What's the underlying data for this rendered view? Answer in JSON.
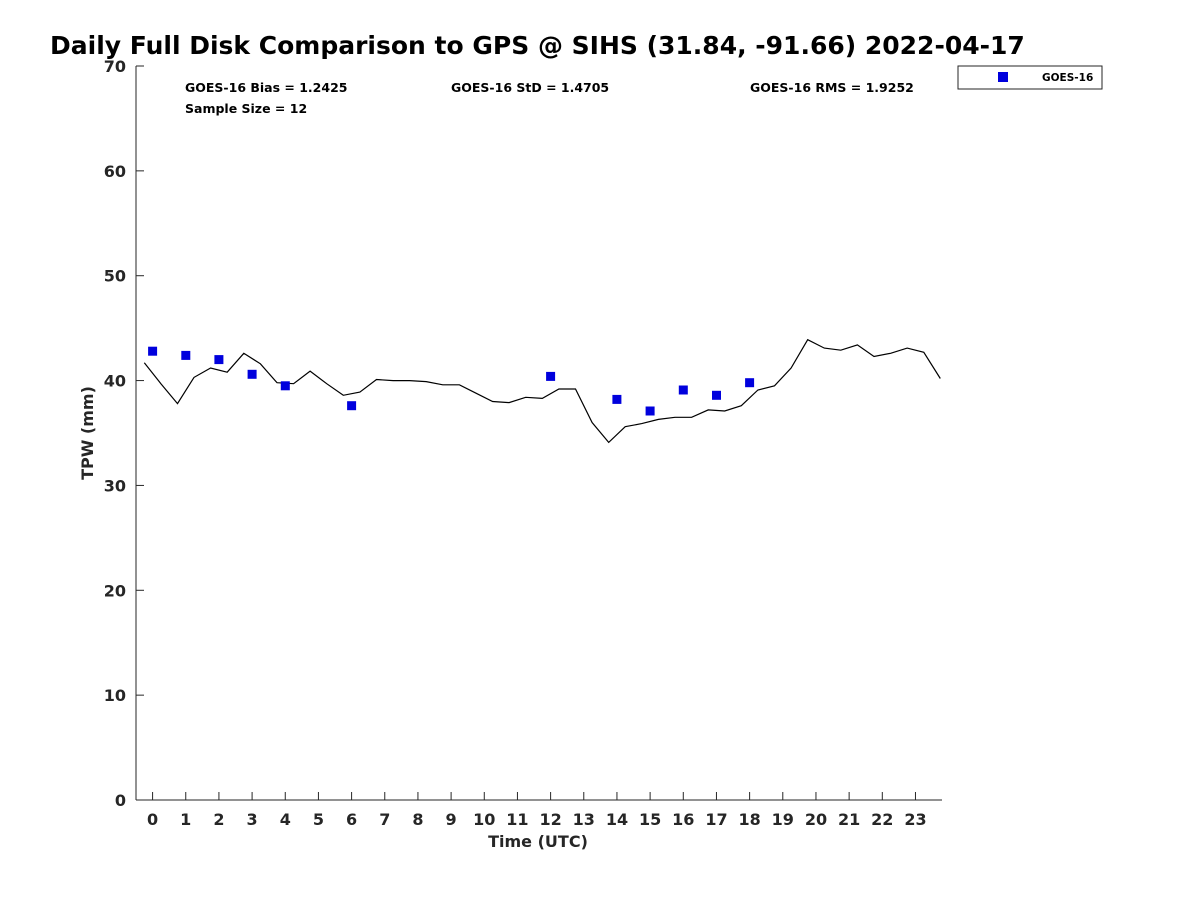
{
  "chart_data": {
    "type": "scatter",
    "title": "Daily Full Disk Comparison to GPS @ SIHS (31.84, -91.66) 2022-04-17",
    "xlabel": "Time (UTC)",
    "ylabel": "TPW (mm)",
    "xlim": [
      -0.5,
      23.8
    ],
    "ylim": [
      0,
      70
    ],
    "x_ticks": [
      "0",
      "1",
      "2",
      "3",
      "4",
      "5",
      "6",
      "7",
      "8",
      "9",
      "10",
      "11",
      "12",
      "13",
      "14",
      "15",
      "16",
      "17",
      "18",
      "19",
      "20",
      "21",
      "22",
      "23"
    ],
    "y_ticks": [
      "0",
      "10",
      "20",
      "30",
      "40",
      "50",
      "60",
      "70"
    ],
    "grid": false,
    "legend_position": "outside-top-right",
    "stats": {
      "bias": "GOES-16 Bias = 1.2425",
      "std": "GOES-16 StD = 1.4705",
      "rms": "GOES-16 RMS = 1.9252",
      "sample_size": "Sample Size = 12"
    },
    "series": [
      {
        "name": "GOES-16",
        "kind": "scatter",
        "marker": "square",
        "color": "#0000dd",
        "x": [
          0,
          1,
          2,
          3,
          4,
          6,
          12,
          14,
          15,
          16,
          17,
          18
        ],
        "y": [
          42.8,
          42.4,
          42.0,
          40.6,
          39.5,
          37.6,
          40.4,
          38.2,
          37.1,
          39.1,
          38.6,
          39.8
        ]
      },
      {
        "kind": "line",
        "color": "#000000",
        "x": [
          -0.25,
          0.25,
          0.75,
          1.25,
          1.75,
          2.25,
          2.75,
          3.25,
          3.75,
          4.25,
          4.75,
          5.25,
          5.75,
          6.25,
          6.75,
          7.25,
          7.75,
          8.25,
          8.75,
          9.25,
          9.75,
          10.25,
          10.75,
          11.25,
          11.75,
          12.25,
          12.75,
          13.25,
          13.75,
          14.25,
          14.75,
          15.25,
          15.75,
          16.25,
          16.75,
          17.25,
          17.75,
          18.25,
          18.75,
          19.25,
          19.75,
          20.25,
          20.75,
          21.25,
          21.75,
          22.25,
          22.75,
          23.25,
          23.75
        ],
        "y": [
          41.7,
          39.7,
          37.8,
          40.3,
          41.2,
          40.8,
          42.6,
          41.6,
          39.8,
          39.7,
          40.9,
          39.7,
          38.6,
          38.9,
          40.1,
          40.0,
          40.0,
          39.9,
          39.6,
          39.6,
          38.8,
          38.0,
          37.9,
          38.4,
          38.3,
          39.2,
          39.2,
          36.0,
          34.1,
          35.6,
          35.9,
          36.3,
          36.5,
          36.5,
          37.2,
          37.1,
          37.6,
          39.1,
          39.5,
          41.2,
          43.9,
          43.1,
          42.9,
          43.4,
          42.3,
          42.6,
          43.1,
          42.7,
          40.2
        ]
      }
    ]
  }
}
